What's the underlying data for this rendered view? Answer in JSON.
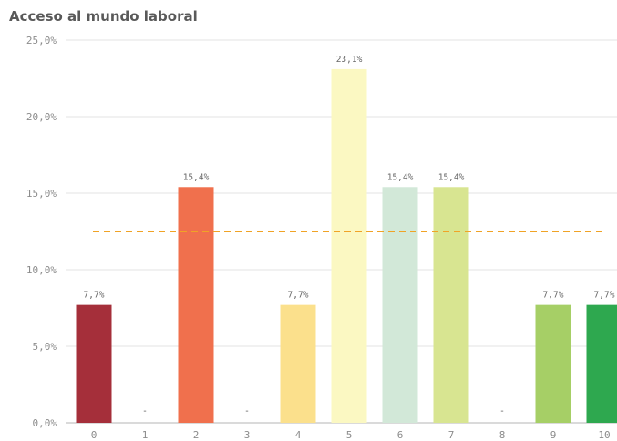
{
  "chart_data": {
    "type": "bar",
    "title": "Acceso al mundo laboral",
    "xlabel": "",
    "ylabel": "",
    "categories": [
      "0",
      "1",
      "2",
      "3",
      "4",
      "5",
      "6",
      "7",
      "8",
      "9",
      "10"
    ],
    "values": [
      7.7,
      0,
      15.4,
      0,
      7.7,
      23.1,
      15.4,
      15.4,
      0,
      7.7,
      7.7
    ],
    "data_labels": [
      "7,7%",
      "-",
      "15,4%",
      "-",
      "7,7%",
      "23,1%",
      "15,4%",
      "15,4%",
      "-",
      "7,7%",
      "7,7%"
    ],
    "bar_colors": [
      "#a52f3a",
      "#a52f3a",
      "#f0704d",
      "#f0704d",
      "#fbe08c",
      "#fbf8c2",
      "#d2e8d8",
      "#d8e591",
      "#d8e591",
      "#a6cf66",
      "#2ea84f"
    ],
    "ylim": [
      0,
      25
    ],
    "yticks": [
      0,
      5,
      10,
      15,
      20,
      25
    ],
    "ytick_labels": [
      "0,0%",
      "5,0%",
      "10,0%",
      "15,0%",
      "20,0%",
      "25,0%"
    ],
    "reference_line": {
      "value": 12.5,
      "style": "dashed",
      "color": "#f0a326"
    },
    "grid": true,
    "legend": "none"
  }
}
